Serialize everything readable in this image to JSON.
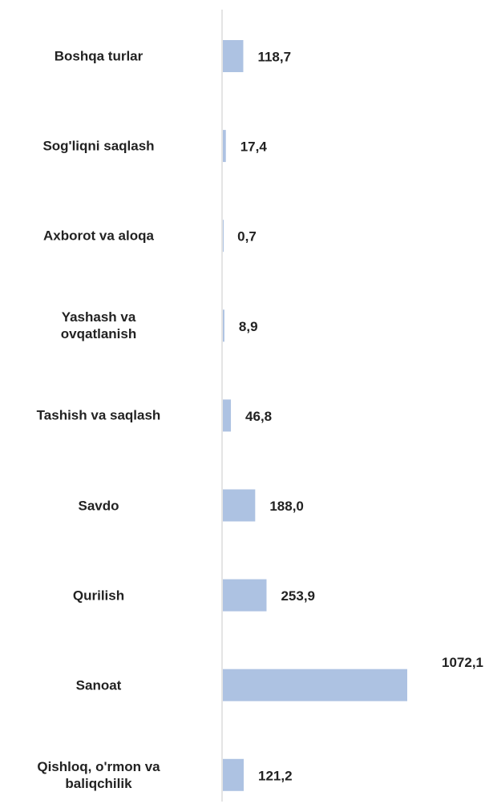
{
  "chart_data": {
    "type": "hbar",
    "categories": [
      "Boshqa turlar",
      "Sog'liqni saqlash",
      "Axborot va aloqa",
      "Yashash va\novqatlanish",
      "Tashish va saqlash",
      "Savdo",
      "Qurilish",
      "Sanoat",
      "Qishloq, o'rmon va\nbaliqchilik"
    ],
    "values": [
      118.7,
      17.4,
      0.7,
      8.9,
      46.8,
      188.0,
      253.9,
      1072.1,
      121.2
    ],
    "value_labels": [
      "118,7",
      "17,4",
      "0,7",
      "8,9",
      "46,8",
      "188,0",
      "253,9",
      "1072,1",
      "121,2"
    ],
    "color": "#adc2e2"
  }
}
